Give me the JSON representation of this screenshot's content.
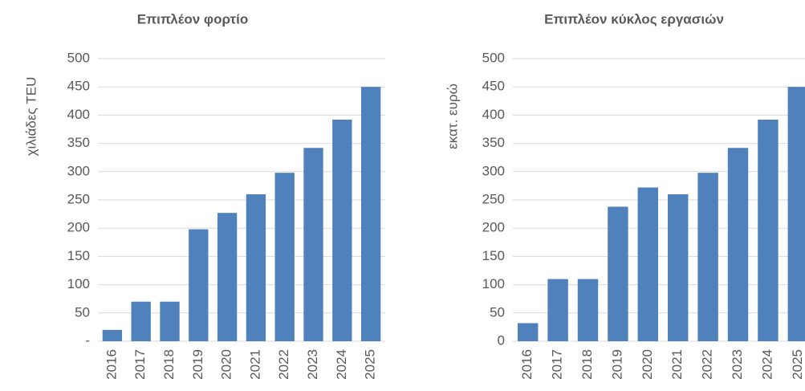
{
  "chart_data": [
    {
      "type": "bar",
      "title": "Επιπλέον φορτίο",
      "y_label": "χιλιάδες TEU",
      "categories": [
        "2016",
        "2017",
        "2018",
        "2019",
        "2020",
        "2021",
        "2022",
        "2023",
        "2024",
        "2025"
      ],
      "values": [
        20,
        70,
        70,
        198,
        227,
        260,
        298,
        342,
        392,
        450
      ],
      "color": "#4f81bd",
      "ylim": [
        0,
        500
      ],
      "yticks": [
        {
          "value": 0,
          "label": "-"
        },
        50,
        100,
        150,
        200,
        250,
        300,
        350,
        400,
        450,
        500
      ],
      "grid": true
    },
    {
      "type": "bar",
      "title": "Επιπλέον κύκλος εργασιών",
      "y_label": "εκατ. ευρώ",
      "categories": [
        "2016",
        "2017",
        "2018",
        "2019",
        "2020",
        "2021",
        "2022",
        "2023",
        "2024",
        "2025"
      ],
      "values": [
        32,
        110,
        110,
        238,
        272,
        260,
        298,
        342,
        392,
        450
      ],
      "color": "#4f81bd",
      "ylim": [
        0,
        500
      ],
      "yticks": [
        0,
        50,
        100,
        150,
        200,
        250,
        300,
        350,
        400,
        450,
        500
      ],
      "grid": true
    }
  ]
}
